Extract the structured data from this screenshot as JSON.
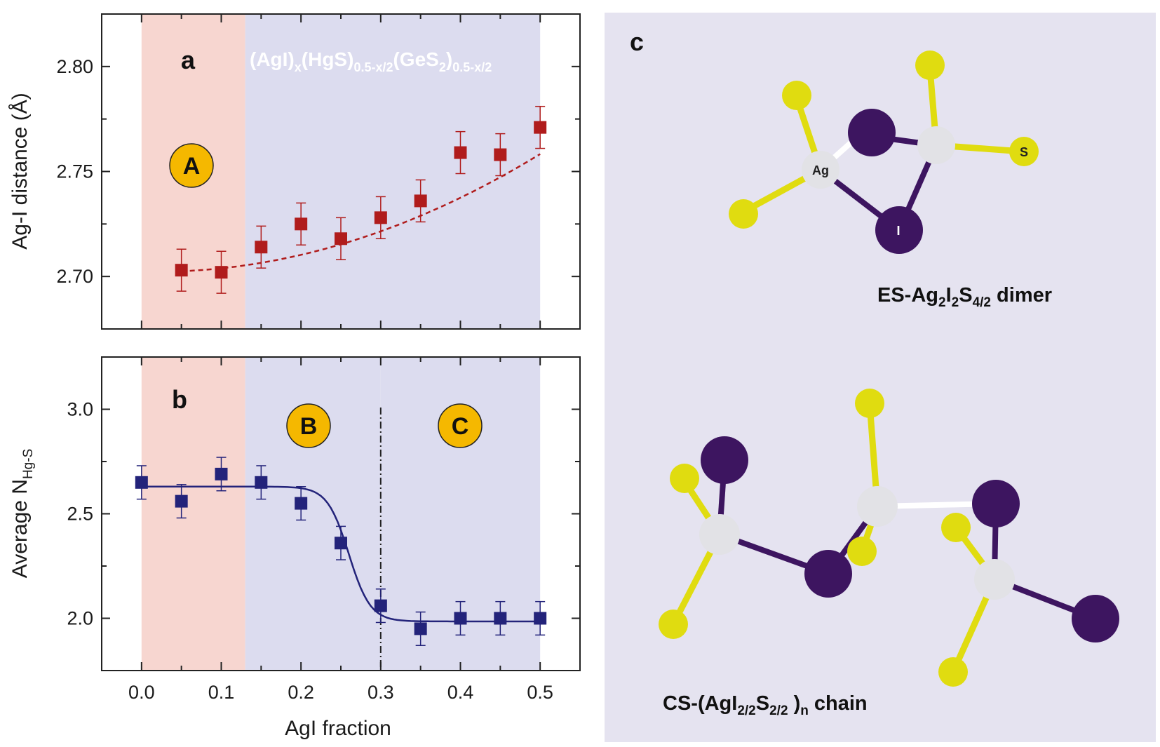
{
  "panel_a": {
    "letter": "a",
    "ylabel": "Ag-I distance (Å)",
    "formula": {
      "p1": "(AgI)",
      "s1": "x",
      "p2": "(HgS)",
      "s2": "0.5-x/2",
      "p3": "(GeS",
      "s3": "2",
      "p4": ")",
      "s4": "0.5-x/2"
    },
    "region_A": "A"
  },
  "panel_b": {
    "letter": "b",
    "ylabel_main": "Average N",
    "ylabel_sub": "Hg-S",
    "xlabel": "AgI fraction",
    "region_B": "B",
    "region_C": "C"
  },
  "panel_c": {
    "letter": "c",
    "dimer_caption": {
      "p1": "ES-Ag",
      "s1": "2",
      "p2": "I",
      "s2": "2",
      "p3": "S",
      "s3": "4/2",
      "p4": " dimer"
    },
    "chain_caption": {
      "p1": "CS-(AgI",
      "s1": "2/2",
      "p2": "S",
      "s2": "2/2",
      "p3": " )",
      "s3": "n",
      "p4": " chain"
    },
    "atom_labels": {
      "ag": "Ag",
      "i": "I",
      "s": "S"
    }
  },
  "colors": {
    "region_a_bg": "#f7d6d0",
    "region_bc_bg": "#dcdcef",
    "panel_c_bg": "#e5e3f0",
    "series_a": "#b01c1c",
    "series_b": "#23237a",
    "badge": "#f5b800",
    "iodine": "#3d1560",
    "sulfur": "#e0dc10",
    "silver": "#e2e2e6"
  },
  "chart_data": [
    {
      "panel": "a",
      "type": "scatter",
      "xlabel": "",
      "ylabel": "Ag-I distance (Å)",
      "xlim": [
        -0.05,
        0.55
      ],
      "ylim": [
        2.675,
        2.825
      ],
      "x_ticks": [
        0.0,
        0.1,
        0.2,
        0.3,
        0.4,
        0.5
      ],
      "y_ticks": [
        2.7,
        2.75,
        2.8
      ],
      "y_tick_labels": [
        "2.70",
        "2.75",
        "2.80"
      ],
      "shaded_regions": [
        {
          "label": "A",
          "from": 0.0,
          "to": 0.13,
          "color": "#f7d6d0"
        },
        {
          "label": "",
          "from": 0.13,
          "to": 0.5,
          "color": "#dcdcef"
        }
      ],
      "series": [
        {
          "x": [
            0.05,
            0.1,
            0.15,
            0.2,
            0.25,
            0.3,
            0.35,
            0.4,
            0.45,
            0.5
          ],
          "y": [
            2.703,
            2.702,
            2.714,
            2.725,
            2.718,
            2.728,
            2.736,
            2.759,
            2.758,
            2.771
          ],
          "error": 0.01,
          "marker": "square",
          "color": "#b01c1c"
        }
      ],
      "trend": {
        "style": "dashed",
        "x": [
          0.05,
          0.5
        ],
        "quadratic": [
          2.7025,
          0.016,
          0.24
        ]
      }
    },
    {
      "panel": "b",
      "type": "scatter",
      "xlabel": "AgI fraction",
      "ylabel": "Average N Hg-S",
      "xlim": [
        -0.05,
        0.55
      ],
      "ylim": [
        1.75,
        3.25
      ],
      "x_ticks": [
        0.0,
        0.1,
        0.2,
        0.3,
        0.4,
        0.5
      ],
      "x_tick_labels": [
        "0.0",
        "0.1",
        "0.2",
        "0.3",
        "0.4",
        "0.5"
      ],
      "y_ticks": [
        2.0,
        2.5,
        3.0
      ],
      "y_tick_labels": [
        "2.0",
        "2.5",
        "3.0"
      ],
      "shaded_regions": [
        {
          "label": "",
          "from": 0.0,
          "to": 0.13,
          "color": "#f7d6d0"
        },
        {
          "label": "B",
          "from": 0.13,
          "to": 0.3,
          "color": "#dcdcef"
        },
        {
          "label": "C",
          "from": 0.3,
          "to": 0.5,
          "color": "#dcdcef"
        }
      ],
      "divider_x": 0.3,
      "series": [
        {
          "x": [
            0.0,
            0.05,
            0.1,
            0.15,
            0.2,
            0.25,
            0.3,
            0.35,
            0.4,
            0.45,
            0.5
          ],
          "y": [
            2.65,
            2.56,
            2.69,
            2.65,
            2.55,
            2.36,
            2.06,
            1.95,
            2.0,
            2.0,
            2.0
          ],
          "error": 0.08,
          "marker": "square",
          "color": "#23237a"
        }
      ],
      "fit": {
        "style": "solid",
        "x": [
          0.0,
          0.5
        ],
        "sigmoid": {
          "upper": 2.63,
          "lower": 1.985,
          "center": 0.26,
          "width": 0.0135
        }
      }
    }
  ]
}
